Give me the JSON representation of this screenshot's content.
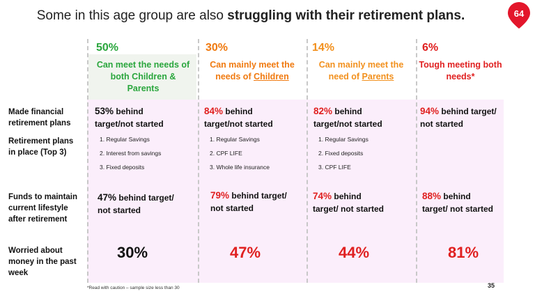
{
  "title": {
    "prefix": "Some in this age group are also ",
    "bold": "struggling with their retirement plans."
  },
  "badge": {
    "label": "64",
    "color": "#e3162b"
  },
  "columns": [
    {
      "pct": "50%",
      "desc_line1": "Can meet the needs of",
      "desc_line2": "both Children &",
      "desc_line3": "Parents",
      "color": "#2aa63d"
    },
    {
      "pct": "30%",
      "desc_line1": "Can mainly meet the",
      "desc_line2_prefix": "needs of ",
      "desc_line2_link": "Children",
      "color": "#f07a10"
    },
    {
      "pct": "14%",
      "desc_line1": "Can mainly meet the",
      "desc_line2_prefix": "need of ",
      "desc_line2_link": "Parents",
      "color": "#f2901d"
    },
    {
      "pct": "6%",
      "desc_line1": "Tough meeting both",
      "desc_line2": "needs*",
      "color": "#e02020"
    }
  ],
  "row_labels": {
    "made_plans_1": "Made financial",
    "made_plans_2": "retirement plans",
    "plans_in_place_1": "Retirement plans",
    "plans_in_place_2": "in place (Top 3)",
    "funds_1": "Funds to maintain",
    "funds_2": "current lifestyle",
    "funds_3": "after retirement",
    "worried_1": "Worried about",
    "worried_2": "money in the past",
    "worried_3": "week"
  },
  "made_plans": [
    {
      "num": "53%",
      "rest1": " behind",
      "rest2": "target/not started"
    },
    {
      "num": "84%",
      "rest1": " behind",
      "rest2": "target/not started"
    },
    {
      "num": "82%",
      "rest1": " behind",
      "rest2": "target/not started"
    },
    {
      "num": "94%",
      "rest1": " behind target/",
      "rest2": "not started"
    }
  ],
  "plans_in_place": [
    [
      "1. Regular Savings",
      "2. Interest from savings",
      "3. Fixed deposits"
    ],
    [
      "1. Regular Savings",
      "2. CPF LIFE",
      "3. Whole life insurance"
    ],
    [
      "1. Regular Savings",
      "2. Fixed deposits",
      "3. CPF LIFE"
    ]
  ],
  "funds": [
    {
      "num": "47%",
      "rest1": " behind target/",
      "rest2": "not started"
    },
    {
      "num": "79%",
      "rest1": " behind target/",
      "rest2": "not started"
    },
    {
      "num": "74%",
      "rest1": " behind",
      "rest2": "target/ not started"
    },
    {
      "num": "88%",
      "rest1": " behind",
      "rest2": "target/ not started"
    }
  ],
  "worried": [
    "30%",
    "47%",
    "44%",
    "81%"
  ],
  "footnote": "*Read with caution – sample size less than 30",
  "page_number": "35"
}
